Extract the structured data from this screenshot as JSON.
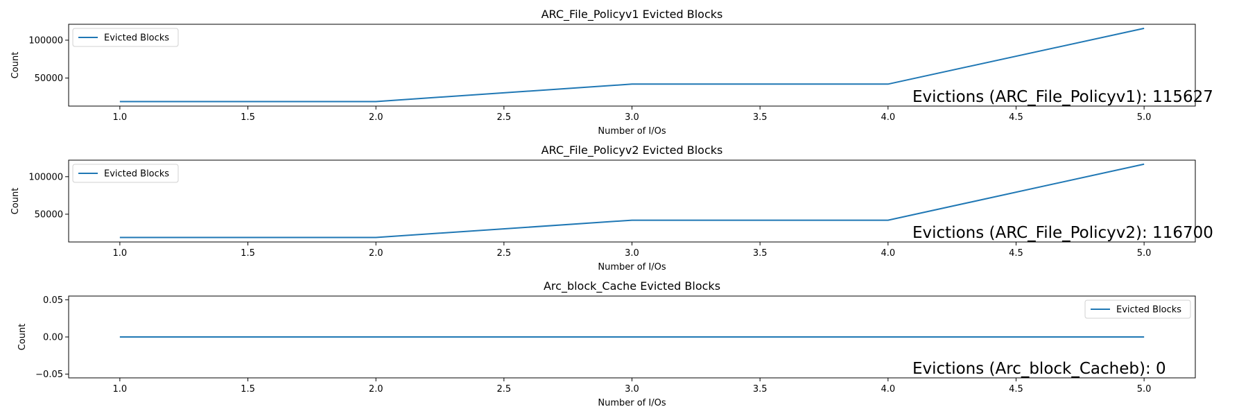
{
  "chart_data": [
    {
      "type": "line",
      "title": "ARC_File_Policyv1 Evicted Blocks",
      "xlabel": "Number of I/Os",
      "ylabel": "Count",
      "x": [
        1.0,
        2.0,
        3.0,
        4.0,
        5.0
      ],
      "series": [
        {
          "name": "Evicted Blocks",
          "values": [
            19000,
            19000,
            42000,
            42000,
            115627
          ],
          "color": "#1f77b4"
        }
      ],
      "xlim": [
        0.8,
        5.2
      ],
      "ylim": [
        13000,
        121000
      ],
      "x_ticks": [
        1.0,
        1.5,
        2.0,
        2.5,
        3.0,
        3.5,
        4.0,
        4.5,
        5.0
      ],
      "x_tick_labels": [
        "1.0",
        "1.5",
        "2.0",
        "2.5",
        "3.0",
        "3.5",
        "4.0",
        "4.5",
        "5.0"
      ],
      "y_ticks": [
        50000,
        100000
      ],
      "y_tick_labels": [
        "50000",
        "100000"
      ],
      "legend_position": "top-left",
      "annotation": "Evictions (ARC_File_Policyv1): 115627",
      "grid": false
    },
    {
      "type": "line",
      "title": "ARC_File_Policyv2 Evicted Blocks",
      "xlabel": "Number of I/Os",
      "ylabel": "Count",
      "x": [
        1.0,
        2.0,
        3.0,
        4.0,
        5.0
      ],
      "series": [
        {
          "name": "Evicted Blocks",
          "values": [
            19000,
            19000,
            42000,
            42000,
            116700
          ],
          "color": "#1f77b4"
        }
      ],
      "xlim": [
        0.8,
        5.2
      ],
      "ylim": [
        13000,
        122000
      ],
      "x_ticks": [
        1.0,
        1.5,
        2.0,
        2.5,
        3.0,
        3.5,
        4.0,
        4.5,
        5.0
      ],
      "x_tick_labels": [
        "1.0",
        "1.5",
        "2.0",
        "2.5",
        "3.0",
        "3.5",
        "4.0",
        "4.5",
        "5.0"
      ],
      "y_ticks": [
        50000,
        100000
      ],
      "y_tick_labels": [
        "50000",
        "100000"
      ],
      "legend_position": "top-left",
      "annotation": "Evictions (ARC_File_Policyv2): 116700",
      "grid": false
    },
    {
      "type": "line",
      "title": "Arc_block_Cache Evicted Blocks",
      "xlabel": "Number of I/Os",
      "ylabel": "Count",
      "x": [
        1.0,
        2.0,
        3.0,
        4.0,
        5.0
      ],
      "series": [
        {
          "name": "Evicted Blocks",
          "values": [
            0,
            0,
            0,
            0,
            0
          ],
          "color": "#1f77b4"
        }
      ],
      "xlim": [
        0.8,
        5.2
      ],
      "ylim": [
        -0.055,
        0.055
      ],
      "x_ticks": [
        1.0,
        1.5,
        2.0,
        2.5,
        3.0,
        3.5,
        4.0,
        4.5,
        5.0
      ],
      "x_tick_labels": [
        "1.0",
        "1.5",
        "2.0",
        "2.5",
        "3.0",
        "3.5",
        "4.0",
        "4.5",
        "5.0"
      ],
      "y_ticks": [
        -0.05,
        0.0,
        0.05
      ],
      "y_tick_labels": [
        "−0.05",
        "0.00",
        "0.05"
      ],
      "legend_position": "top-right",
      "annotation": "Evictions (Arc_block_Cacheb): 0",
      "grid": false
    }
  ]
}
